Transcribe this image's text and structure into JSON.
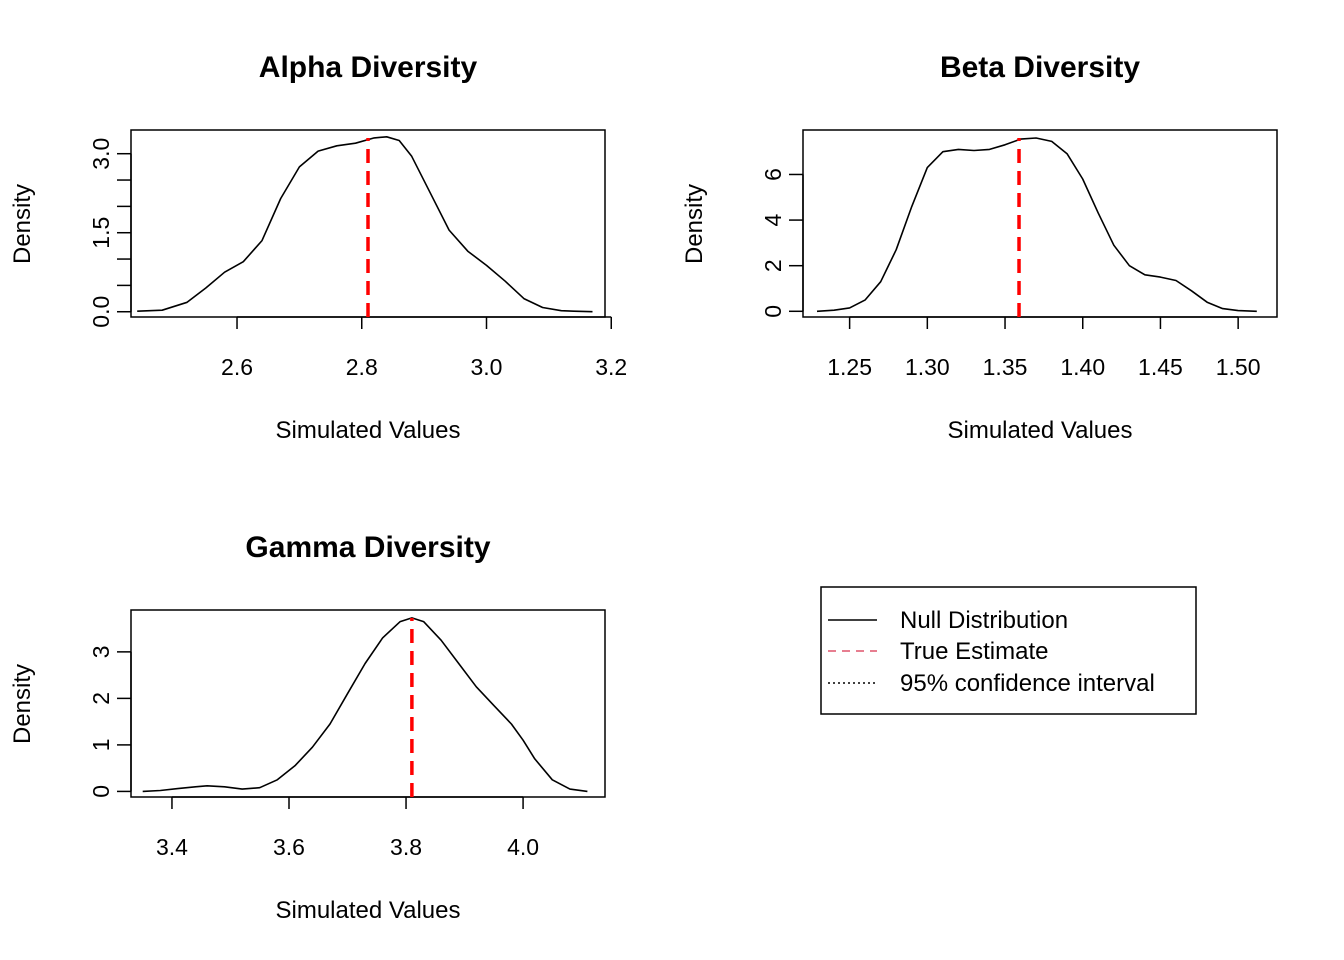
{
  "chart_data": [
    {
      "type": "line",
      "title": "Alpha Diversity",
      "xlabel": "Simulated Values",
      "ylabel": "Density",
      "xlim": [
        2.43,
        3.19
      ],
      "ylim": [
        -0.1,
        3.45
      ],
      "xticks": [
        2.6,
        2.8,
        3.0,
        3.2
      ],
      "xtick_labels": [
        "2.6",
        "2.8",
        "3.0",
        "3.2"
      ],
      "yticks": [
        0,
        0.5,
        1,
        1.5,
        2,
        2.5,
        3
      ],
      "ytick_labels": [
        "0.0",
        "",
        "",
        "1.5",
        "",
        "",
        "3.0"
      ],
      "true_estimate": 2.81,
      "series": [
        {
          "x": [
            2.44,
            2.48,
            2.52,
            2.55,
            2.58,
            2.61,
            2.64,
            2.67,
            2.7,
            2.73,
            2.76,
            2.79,
            2.82,
            2.84,
            2.86,
            2.88,
            2.91,
            2.94,
            2.97,
            3.0,
            3.03,
            3.06,
            3.09,
            3.12,
            3.14,
            3.17
          ],
          "y": [
            0.01,
            0.03,
            0.18,
            0.45,
            0.75,
            0.95,
            1.35,
            2.15,
            2.75,
            3.05,
            3.15,
            3.2,
            3.3,
            3.32,
            3.25,
            2.95,
            2.25,
            1.55,
            1.15,
            0.88,
            0.58,
            0.25,
            0.08,
            0.02,
            0.01,
            0.0
          ]
        }
      ]
    },
    {
      "type": "line",
      "title": "Beta Diversity",
      "xlabel": "Simulated Values",
      "ylabel": "Density",
      "xlim": [
        1.22,
        1.525
      ],
      "ylim": [
        -0.25,
        7.95
      ],
      "xticks": [
        1.25,
        1.3,
        1.35,
        1.4,
        1.45,
        1.5
      ],
      "xtick_labels": [
        "1.25",
        "1.30",
        "1.35",
        "1.40",
        "1.45",
        "1.50"
      ],
      "yticks": [
        0,
        2,
        4,
        6
      ],
      "ytick_labels": [
        "0",
        "2",
        "4",
        "6"
      ],
      "true_estimate": 1.359,
      "series": [
        {
          "x": [
            1.229,
            1.24,
            1.25,
            1.26,
            1.27,
            1.28,
            1.29,
            1.3,
            1.31,
            1.32,
            1.33,
            1.34,
            1.35,
            1.36,
            1.37,
            1.38,
            1.39,
            1.4,
            1.41,
            1.42,
            1.43,
            1.44,
            1.45,
            1.46,
            1.47,
            1.48,
            1.49,
            1.5,
            1.512
          ],
          "y": [
            0.0,
            0.05,
            0.15,
            0.5,
            1.3,
            2.7,
            4.6,
            6.3,
            7.0,
            7.1,
            7.05,
            7.1,
            7.3,
            7.55,
            7.6,
            7.45,
            6.9,
            5.8,
            4.3,
            2.9,
            2.0,
            1.6,
            1.5,
            1.35,
            0.9,
            0.4,
            0.12,
            0.03,
            0.0
          ]
        }
      ]
    },
    {
      "type": "line",
      "title": "Gamma Diversity",
      "xlabel": "Simulated Values",
      "ylabel": "Density",
      "xlim": [
        3.33,
        4.14
      ],
      "ylim": [
        -0.12,
        3.9
      ],
      "xticks": [
        3.4,
        3.6,
        3.8,
        4.0
      ],
      "xtick_labels": [
        "3.4",
        "3.6",
        "3.8",
        "4.0"
      ],
      "yticks": [
        0,
        1,
        2,
        3
      ],
      "ytick_labels": [
        "0",
        "1",
        "2",
        "3"
      ],
      "true_estimate": 3.81,
      "series": [
        {
          "x": [
            3.35,
            3.38,
            3.41,
            3.44,
            3.46,
            3.49,
            3.52,
            3.55,
            3.58,
            3.61,
            3.64,
            3.67,
            3.7,
            3.73,
            3.76,
            3.79,
            3.81,
            3.83,
            3.86,
            3.89,
            3.92,
            3.95,
            3.98,
            4.0,
            4.02,
            4.05,
            4.08,
            4.11
          ],
          "y": [
            0.0,
            0.02,
            0.06,
            0.1,
            0.12,
            0.1,
            0.05,
            0.08,
            0.25,
            0.55,
            0.95,
            1.45,
            2.1,
            2.75,
            3.3,
            3.65,
            3.73,
            3.65,
            3.25,
            2.75,
            2.25,
            1.85,
            1.45,
            1.1,
            0.7,
            0.25,
            0.05,
            0.0
          ]
        }
      ]
    }
  ],
  "legend": {
    "items": [
      {
        "label": "Null Distribution",
        "color": "#000000",
        "dash": "solid"
      },
      {
        "label": "True Estimate",
        "color": "#DF536B",
        "dash": "dashed"
      },
      {
        "label": "95% confidence interval",
        "color": "#000000",
        "dash": "dotted"
      }
    ]
  },
  "colors": {
    "density_line": "#000000",
    "true_estimate_line": "#FF0000"
  }
}
